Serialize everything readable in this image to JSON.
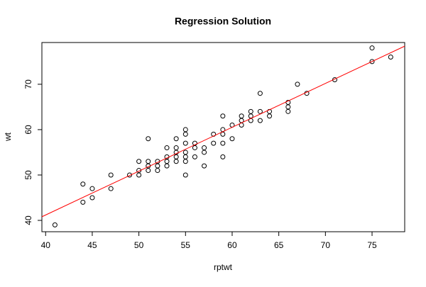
{
  "chart_data": {
    "type": "scatter",
    "title": "Regression Solution",
    "x_label": "rptwt",
    "y_label": "wt",
    "x": [
      41,
      44,
      44,
      45,
      45,
      47,
      47,
      49,
      50,
      50,
      50,
      51,
      51,
      51,
      51,
      52,
      52,
      52,
      53,
      53,
      53,
      53,
      54,
      54,
      54,
      54,
      54,
      55,
      55,
      55,
      55,
      55,
      55,
      55,
      56,
      56,
      56,
      57,
      57,
      57,
      58,
      58,
      59,
      59,
      59,
      59,
      59,
      60,
      60,
      61,
      61,
      61,
      62,
      62,
      62,
      63,
      63,
      63,
      64,
      64,
      66,
      66,
      66,
      67,
      68,
      71,
      75,
      75,
      77
    ],
    "y": [
      39,
      44,
      48,
      45,
      47,
      47,
      50,
      50,
      50,
      51,
      53,
      51,
      58,
      52,
      53,
      51,
      52,
      53,
      52,
      53,
      54,
      56,
      53,
      55,
      56,
      58,
      54,
      50,
      53,
      54,
      55,
      57,
      59,
      60,
      54,
      56,
      57,
      52,
      55,
      56,
      59,
      57,
      54,
      57,
      59,
      60,
      63,
      58,
      61,
      61,
      62,
      63,
      62,
      63,
      64,
      62,
      64,
      68,
      64,
      63,
      64,
      65,
      66,
      70,
      68,
      71,
      75,
      78,
      76
    ],
    "color": "#000000",
    "fit": {
      "color": "#ff0000",
      "x": [
        39.6,
        78.5
      ],
      "y": [
        40.8,
        78.4
      ]
    },
    "xlim": [
      39.6,
      78.5
    ],
    "ylim": [
      37.5,
      79.2
    ],
    "xticks": [
      40,
      45,
      50,
      55,
      60,
      65,
      70,
      75
    ],
    "yticks": [
      40,
      50,
      60,
      70
    ]
  }
}
